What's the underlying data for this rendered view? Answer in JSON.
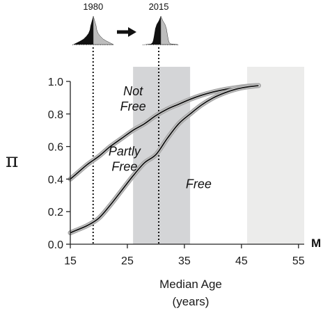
{
  "chart_data": {
    "type": "line",
    "xlabel": "Median Age",
    "xlabel_units": "(years)",
    "ylabel": "π",
    "corner_label": "M",
    "xlim": [
      15,
      56
    ],
    "ylim": [
      0,
      1.0
    ],
    "x_ticks": [
      "15",
      "25",
      "35",
      "45",
      "55"
    ],
    "y_ticks": [
      "0.0",
      "0.2",
      "0.4",
      "0.6",
      "0.8",
      "1.0"
    ],
    "grid": false,
    "shaded_bands": [
      {
        "x_start": 26,
        "x_end": 36,
        "color": "#d4d5d7"
      },
      {
        "x_start": 46,
        "x_end": 56,
        "color": "#ececeb"
      }
    ],
    "reference_lines": [
      {
        "x": 19,
        "label": "1980",
        "style": "dotted"
      },
      {
        "x": 30.5,
        "label": "2015",
        "style": "dotted"
      }
    ],
    "region_labels": [
      {
        "text_lines": [
          "Not",
          "Free"
        ],
        "x": 26,
        "y": 0.915
      },
      {
        "text_lines": [
          "Partly",
          "Free"
        ],
        "x": 24.5,
        "y": 0.545
      },
      {
        "text_lines": [
          "Free"
        ],
        "x": 37.5,
        "y": 0.345
      }
    ],
    "series": [
      {
        "x": [
          15,
          16,
          18,
          20,
          22,
          24,
          26,
          28,
          30,
          32,
          34,
          36,
          38,
          40,
          42,
          44,
          46,
          48
        ],
        "values": [
          0.4,
          0.43,
          0.49,
          0.54,
          0.6,
          0.65,
          0.7,
          0.74,
          0.79,
          0.83,
          0.86,
          0.89,
          0.915,
          0.935,
          0.95,
          0.961,
          0.97,
          0.975
        ]
      },
      {
        "x": [
          15,
          16,
          18,
          20,
          22,
          24,
          26,
          28,
          30,
          32,
          34,
          36,
          38,
          40,
          42,
          44,
          46,
          48
        ],
        "values": [
          0.07,
          0.085,
          0.115,
          0.16,
          0.24,
          0.33,
          0.42,
          0.5,
          0.55,
          0.65,
          0.74,
          0.8,
          0.855,
          0.898,
          0.929,
          0.952,
          0.966,
          0.974
        ]
      }
    ],
    "line_color": "#111111",
    "band_color": "#a9a9a9"
  },
  "pyramid_arrow": "arrow"
}
